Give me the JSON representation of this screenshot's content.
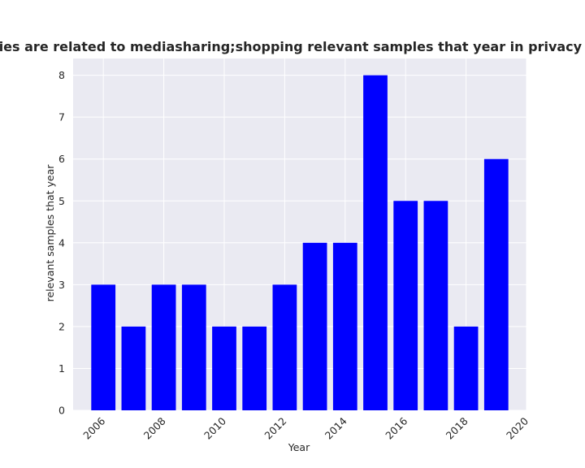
{
  "chart_data": {
    "type": "bar",
    "title": "categories are related to mediasharing;shopping relevant samples that year in privacy policies",
    "xlabel": "Year",
    "ylabel": "relevant samples that year",
    "x": [
      2006,
      2007,
      2008,
      2009,
      2010,
      2011,
      2012,
      2013,
      2014,
      2015,
      2016,
      2017,
      2018,
      2019
    ],
    "values": [
      3,
      2,
      3,
      3,
      2,
      2,
      3,
      4,
      4,
      8,
      5,
      5,
      2,
      6
    ],
    "xlim": [
      2005,
      2020
    ],
    "ylim": [
      0,
      8.4
    ],
    "xticks": [
      2006,
      2008,
      2010,
      2012,
      2014,
      2016,
      2018,
      2020
    ],
    "yticks": [
      0,
      1,
      2,
      3,
      4,
      5,
      6,
      7,
      8
    ],
    "bar_color": "#0000ff",
    "plot_background": "#eaeaf2",
    "grid": true,
    "grid_color": "#ffffff"
  }
}
